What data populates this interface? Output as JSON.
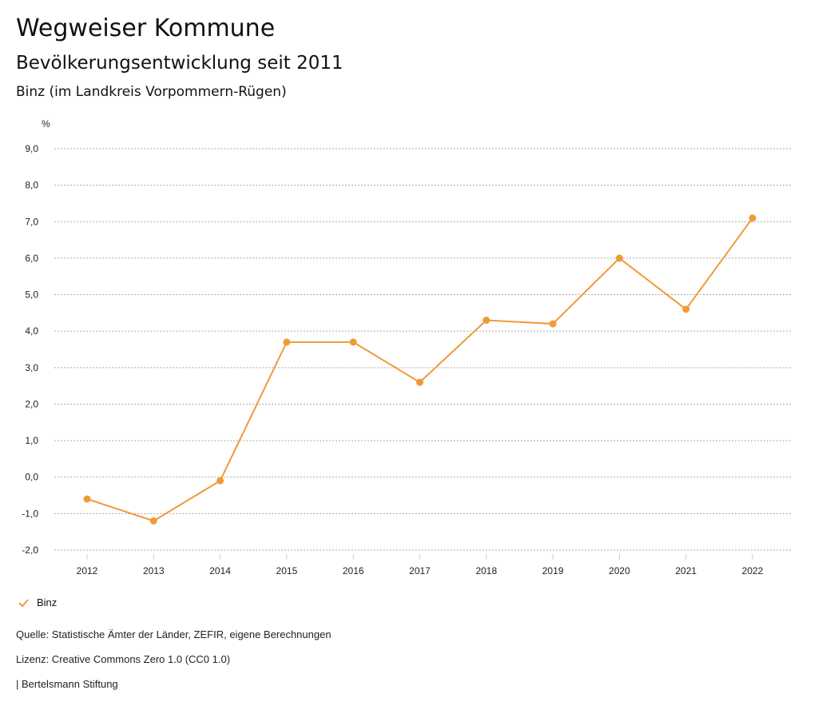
{
  "header": {
    "title": "Wegweiser Kommune",
    "subtitle": "Bevölkerungsentwicklung seit 2011",
    "region": "Binz (im Landkreis Vorpommern-Rügen)"
  },
  "chart_data": {
    "type": "line",
    "ylabel": "%",
    "ylim": [
      -2,
      9
    ],
    "yticks": [
      "9,0",
      "8,0",
      "7,0",
      "6,0",
      "5,0",
      "4,0",
      "3,0",
      "2,0",
      "1,0",
      "0,0",
      "-1,0",
      "-2,0"
    ],
    "ytick_values": [
      9,
      8,
      7,
      6,
      5,
      4,
      3,
      2,
      1,
      0,
      -1,
      -2
    ],
    "categories": [
      "2012",
      "2013",
      "2014",
      "2015",
      "2016",
      "2017",
      "2018",
      "2019",
      "2020",
      "2021",
      "2022"
    ],
    "series": [
      {
        "name": "Binz",
        "color": "#f0993a",
        "values": [
          -0.6,
          -1.2,
          -0.1,
          3.7,
          3.7,
          2.6,
          4.3,
          4.2,
          6.0,
          4.6,
          7.1
        ]
      }
    ],
    "grid": true,
    "legend": "bottom-left"
  },
  "footer": {
    "source": "Quelle: Statistische Ämter der Länder, ZEFIR, eigene Berechnungen",
    "license": "Lizenz: Creative Commons Zero 1.0 (CC0 1.0)",
    "publisher": "| Bertelsmann Stiftung"
  }
}
